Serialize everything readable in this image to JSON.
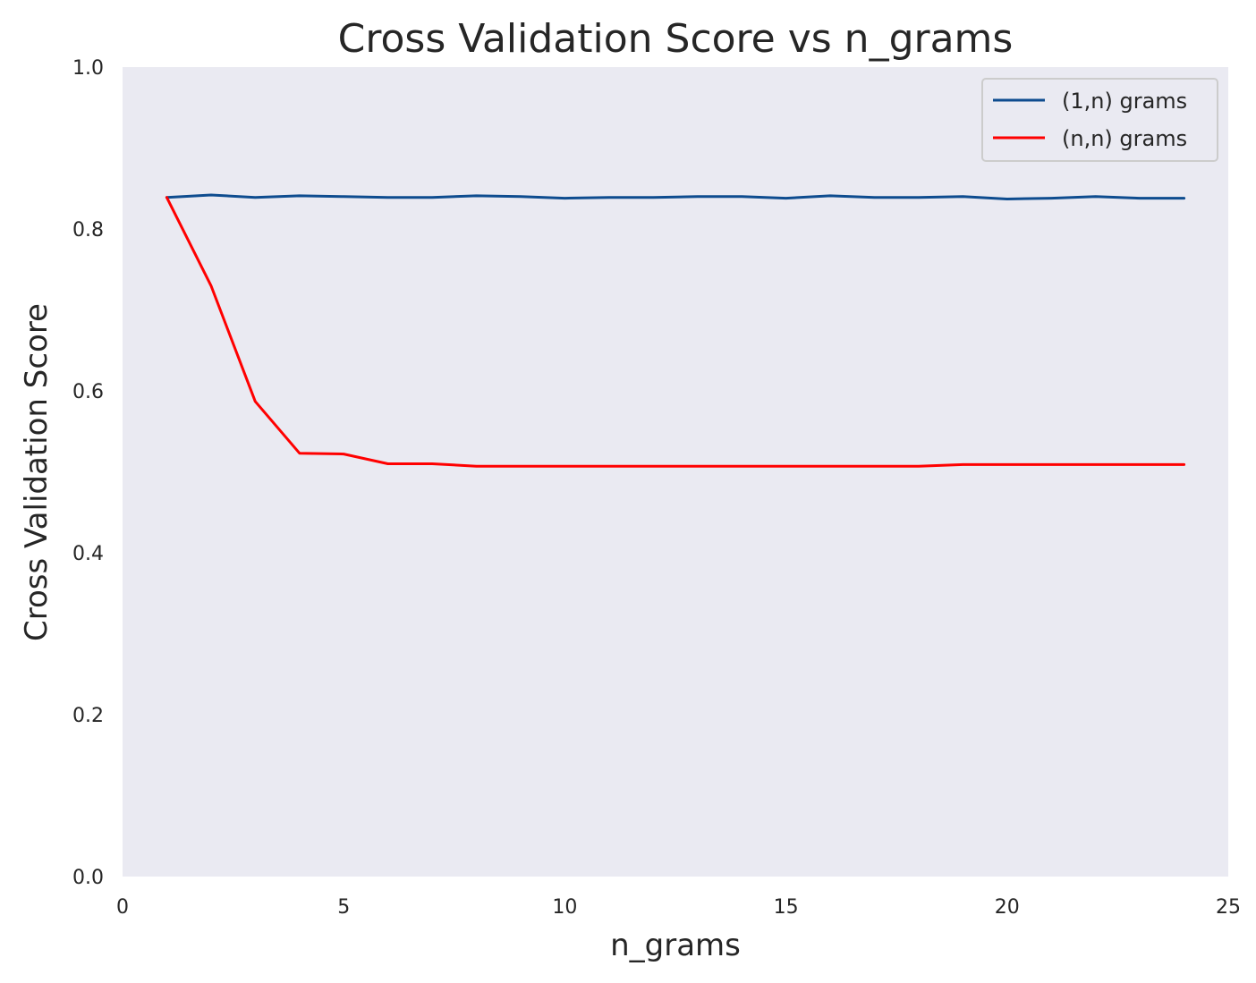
{
  "chart_data": {
    "type": "line",
    "title": "Cross Validation Score vs n_grams",
    "xlabel": "n_grams",
    "ylabel": "Cross Validation Score",
    "xlim": [
      0,
      25
    ],
    "ylim": [
      0.0,
      1.0
    ],
    "xticks": [
      0,
      5,
      10,
      15,
      20,
      25
    ],
    "yticks": [
      0.0,
      0.2,
      0.4,
      0.6,
      0.8,
      1.0
    ],
    "xtick_labels": [
      "0",
      "5",
      "10",
      "15",
      "20",
      "25"
    ],
    "ytick_labels": [
      "0.0",
      "0.2",
      "0.4",
      "0.6",
      "0.8",
      "1.0"
    ],
    "grid": false,
    "background": "#eaeaf2",
    "legend_position": "top-right",
    "x": [
      1,
      2,
      3,
      4,
      5,
      6,
      7,
      8,
      9,
      10,
      11,
      12,
      13,
      14,
      15,
      16,
      17,
      18,
      19,
      20,
      21,
      22,
      23,
      24
    ],
    "series": [
      {
        "name": "(1,n) grams",
        "color": "#0e4c8f",
        "values": [
          0.839,
          0.842,
          0.839,
          0.841,
          0.84,
          0.839,
          0.839,
          0.841,
          0.84,
          0.838,
          0.839,
          0.839,
          0.84,
          0.84,
          0.838,
          0.841,
          0.839,
          0.839,
          0.84,
          0.837,
          0.838,
          0.84,
          0.838,
          0.838
        ]
      },
      {
        "name": "(n,n) grams",
        "color": "#ff0000",
        "values": [
          0.839,
          0.73,
          0.587,
          0.523,
          0.522,
          0.51,
          0.51,
          0.507,
          0.507,
          0.507,
          0.507,
          0.507,
          0.507,
          0.507,
          0.507,
          0.507,
          0.507,
          0.507,
          0.509,
          0.509,
          0.509,
          0.509,
          0.509,
          0.509
        ]
      }
    ]
  }
}
